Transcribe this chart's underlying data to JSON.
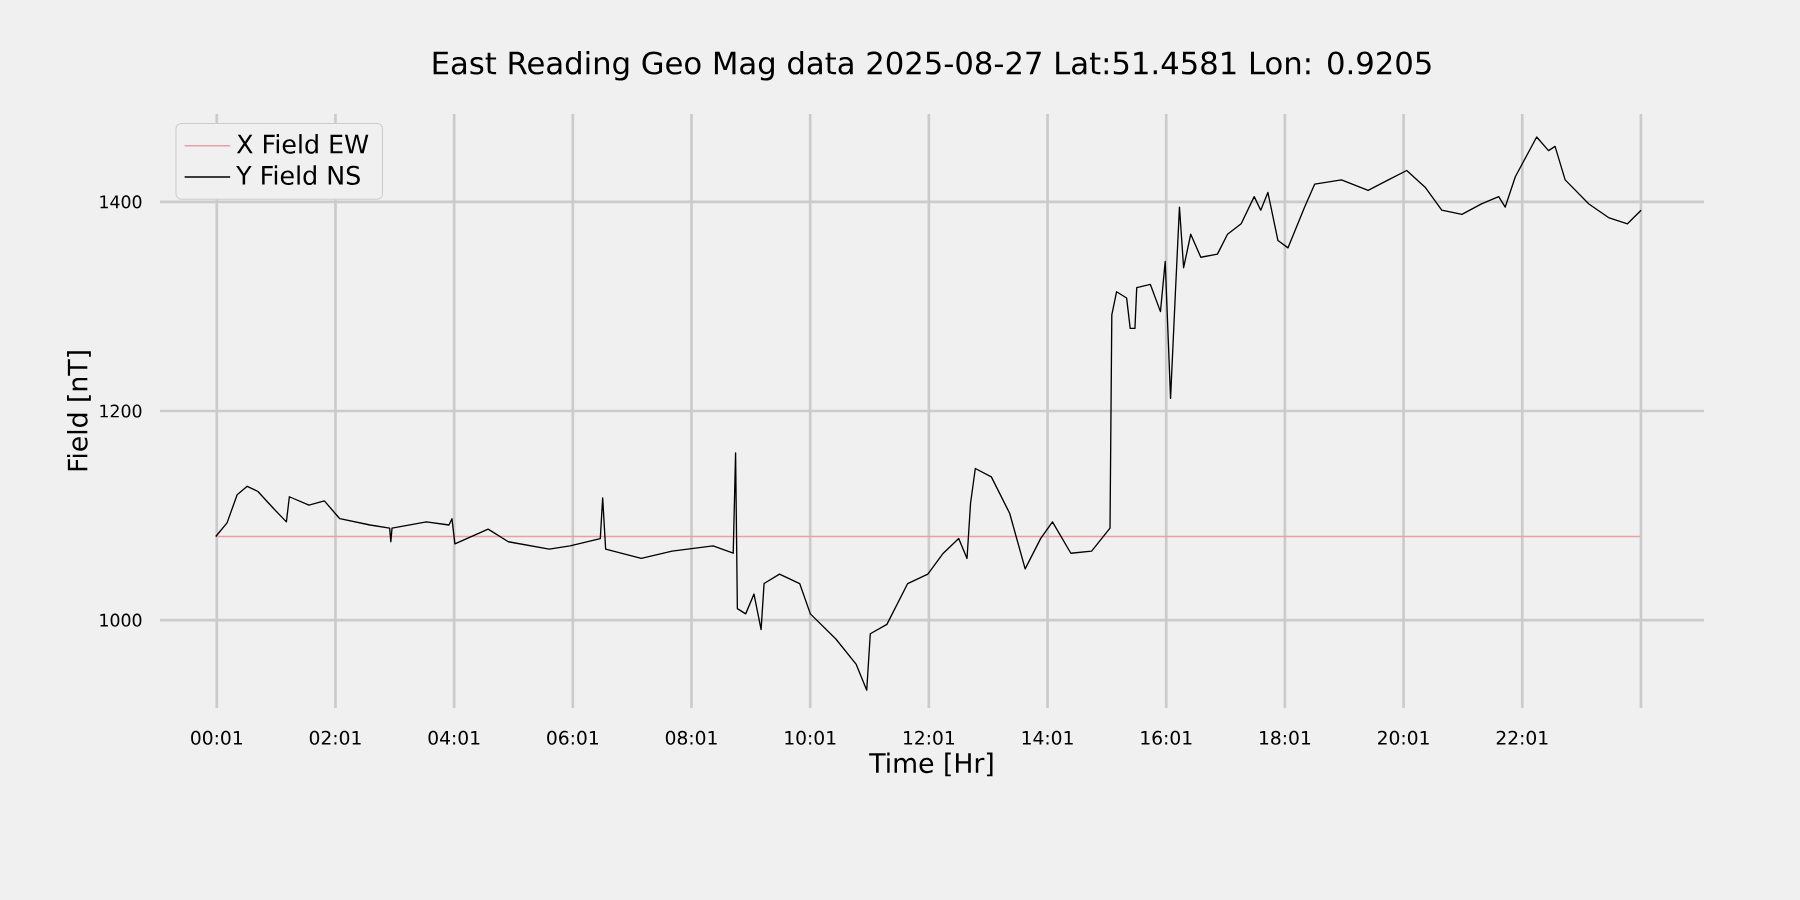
{
  "chart_data": {
    "type": "line",
    "title": "East Reading Geo Mag data        2025-08-27      Lat:51.4581  Lon: 0.9205",
    "xlabel": "Time  [Hr]",
    "ylabel": "Field  [nT]",
    "xlim": [
      -0.94,
      25.08
    ],
    "ylim": [
      916,
      1484
    ],
    "xticks": [
      {
        "value": 0.017,
        "label": "00:01"
      },
      {
        "value": 2.017,
        "label": "02:01"
      },
      {
        "value": 4.017,
        "label": "04:01"
      },
      {
        "value": 6.017,
        "label": "06:01"
      },
      {
        "value": 8.017,
        "label": "08:01"
      },
      {
        "value": 10.017,
        "label": "10:01"
      },
      {
        "value": 12.017,
        "label": "12:01"
      },
      {
        "value": 14.017,
        "label": "14:01"
      },
      {
        "value": 16.017,
        "label": "16:01"
      },
      {
        "value": 18.017,
        "label": "18:01"
      },
      {
        "value": 20.017,
        "label": "20:01"
      },
      {
        "value": 22.017,
        "label": "22:01"
      },
      {
        "value": 24.017,
        "label": null
      }
    ],
    "yticks": [
      1000,
      1200,
      1400
    ],
    "grid": true,
    "legend": "top left",
    "series": [
      {
        "name": "X Field EW",
        "color": "#e8a0a0",
        "x": [
          0,
          24
        ],
        "values": [
          1080,
          1080
        ]
      },
      {
        "name": "Y Field NS",
        "color": "#000000",
        "x": [
          0,
          0.19,
          0.36,
          0.53,
          0.71,
          0.97,
          1.19,
          1.24,
          1.57,
          1.83,
          2.09,
          2.6,
          2.93,
          2.95,
          2.97,
          3.55,
          3.93,
          3.98,
          4.03,
          4.59,
          4.93,
          5.62,
          5.97,
          6.48,
          6.52,
          6.57,
          7.17,
          7.69,
          8.38,
          8.72,
          8.76,
          8.79,
          8.93,
          9.07,
          9.19,
          9.24,
          9.5,
          9.84,
          10.02,
          10.45,
          10.79,
          10.97,
          11.03,
          11.31,
          11.66,
          12.0,
          12.26,
          12.52,
          12.66,
          12.72,
          12.8,
          13.07,
          13.38,
          13.64,
          13.9,
          14.1,
          14.41,
          14.76,
          15.07,
          15.1,
          15.18,
          15.35,
          15.41,
          15.49,
          15.52,
          15.75,
          15.92,
          16.0,
          16.09,
          16.17,
          16.24,
          16.31,
          16.43,
          16.6,
          16.88,
          17.05,
          17.28,
          17.5,
          17.61,
          17.73,
          17.9,
          18.07,
          18.35,
          18.52,
          18.97,
          19.42,
          19.76,
          20.07,
          20.38,
          20.66,
          21.0,
          21.33,
          21.62,
          21.73,
          21.9,
          22.26,
          22.46,
          22.57,
          22.74,
          23.14,
          23.47,
          23.79,
          24.02
        ],
        "values": [
          1080,
          1093,
          1120,
          1128,
          1123,
          1107,
          1094,
          1118,
          1110,
          1114,
          1097,
          1091,
          1088,
          1075,
          1088,
          1094,
          1091,
          1097,
          1073,
          1087,
          1075,
          1068,
          1071,
          1078,
          1117,
          1068,
          1059,
          1066,
          1071,
          1064,
          1160,
          1011,
          1006,
          1025,
          991,
          1035,
          1044,
          1035,
          1006,
          982,
          958,
          933,
          987,
          996,
          1035,
          1044,
          1064,
          1078,
          1059,
          1112,
          1145,
          1137,
          1102,
          1049,
          1078,
          1094,
          1064,
          1066,
          1088,
          1292,
          1314,
          1308,
          1279,
          1279,
          1318,
          1321,
          1295,
          1343,
          1212,
          1311,
          1395,
          1337,
          1369,
          1347,
          1350,
          1369,
          1379,
          1405,
          1392,
          1409,
          1363,
          1356,
          1395,
          1417,
          1421,
          1411,
          1421,
          1430,
          1414,
          1392,
          1388,
          1398,
          1405,
          1395,
          1424,
          1462,
          1449,
          1453,
          1421,
          1398,
          1385,
          1379,
          1392
        ]
      }
    ]
  }
}
